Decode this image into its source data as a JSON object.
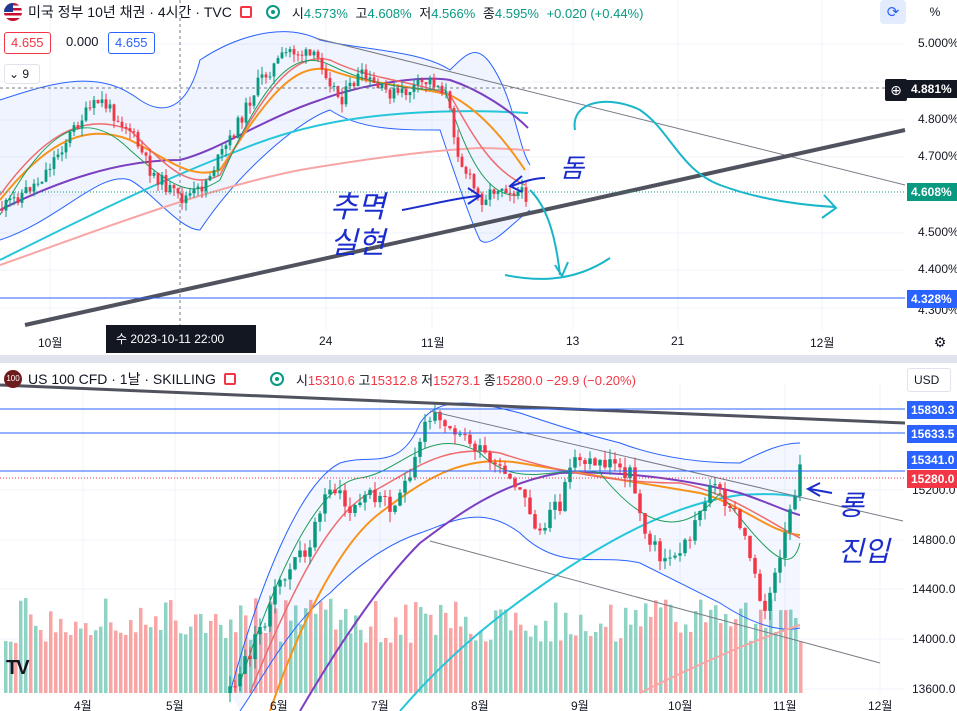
{
  "top_chart": {
    "title": "미국 정부 10년 채권 · 4시간 · TVC",
    "ohlc": {
      "open_label": "시",
      "open": "4.573%",
      "high_label": "고",
      "high": "4.608%",
      "low_label": "저",
      "low": "4.566%",
      "close_label": "종",
      "close": "4.595%",
      "change": "+0.020 (+0.44%)"
    },
    "bid": "4.655",
    "spread": "0.000",
    "ask": "4.655",
    "indicator_count": "9",
    "y_axis_labels": [
      "5.000%",
      "4.800%",
      "4.700%",
      "4.500%",
      "4.400%",
      "4.300%"
    ],
    "price_tags": {
      "crosshair": "4.881%",
      "current": "4.608%",
      "level": "4.328%"
    },
    "x_axis_labels": [
      "10월",
      "24",
      "11월",
      "13",
      "21",
      "12월"
    ],
    "crosshair_date": "수 2023-10-11   22:00",
    "annotations": {
      "left_text": "추멱 실현",
      "right_text": "돔"
    },
    "percent_button": "%"
  },
  "bottom_chart": {
    "title": "US 100 CFD · 1날 · SKILLING",
    "ohlc": {
      "open_label": "시",
      "open": "15310.6",
      "high_label": "고",
      "high": "15312.8",
      "low_label": "저",
      "low": "15273.1",
      "close_label": "종",
      "close": "15280.0",
      "change": "−29.9 (−0.20%)"
    },
    "currency": "USD",
    "symbol_badge": "100",
    "y_axis_labels": [
      "15200.0",
      "14800.0",
      "14400.0",
      "14000.0",
      "13600.0"
    ],
    "price_tags": {
      "level1": "15830.3",
      "level2": "15633.5",
      "level3": "15341.0",
      "current": "15280.0"
    },
    "x_axis_labels": [
      "4월",
      "5월",
      "6월",
      "7월",
      "8월",
      "9월",
      "10월",
      "11월",
      "12월"
    ],
    "annotations": {
      "right_text": "롱 진입"
    },
    "logo": "TV"
  },
  "colors": {
    "up": "#089981",
    "down": "#f23645",
    "accent": "#2962ff",
    "annotation": "#1a2ccc",
    "drawing": "#19b6c9"
  }
}
